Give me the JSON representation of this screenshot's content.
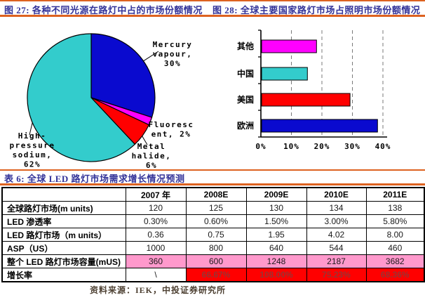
{
  "header": {
    "fig27_title": "图 27: 各种不同光源在路灯中占的市场份额情况",
    "fig28_title": "图 28: 全球主要国家路灯市场占照明市场份额情况"
  },
  "table_section": {
    "title": "表 6: 全球 LED 路灯市场需求增长情况预测",
    "source": "资料来源：IEK，中投证券研究所"
  },
  "colors": {
    "accent_orange": "#DD6220",
    "title_blue": "#333399",
    "pie_blue": "#0A0ACF",
    "magenta": "#FF00FF",
    "red": "#FF0000",
    "cyan": "#33CCCC",
    "pink_row_bg": "#FF99CC",
    "growth_row_bg": "#FF0000",
    "growth_text": "#993333"
  },
  "chart_data": [
    {
      "type": "pie",
      "title": "各种不同光源在路灯中占的市场份额情况",
      "start_angle_deg": 0,
      "direction": "clockwise",
      "slices": [
        {
          "name": "Mercury vapour",
          "value": 30,
          "color": "#0A0ACF",
          "label_lines": [
            "Mercury",
            "vapour,",
            "30%"
          ]
        },
        {
          "name": "Fluorescent",
          "value": 2,
          "color": "#FF00FF",
          "label_lines": [
            "Fluoresc",
            "ent, 2%"
          ]
        },
        {
          "name": "Metal halide",
          "value": 6,
          "color": "#FF0000",
          "label_lines": [
            "Metal",
            "halide,",
            "6%"
          ]
        },
        {
          "name": "High-pressure sodium",
          "value": 62,
          "color": "#33CCCC",
          "label_lines": [
            "High-",
            "pressure",
            "sodium,",
            "62%"
          ]
        }
      ]
    },
    {
      "type": "bar",
      "orientation": "horizontal",
      "title": "全球主要国家路灯市场占照明市场份额情况",
      "categories": [
        "其他",
        "中国",
        "美国",
        "欧洲"
      ],
      "values": [
        18,
        15,
        29,
        38
      ],
      "unit": "%",
      "bar_colors": [
        "#FF00FF",
        "#33CCCC",
        "#FF0000",
        "#0A0ACF"
      ],
      "x_ticks": [
        0,
        10,
        20,
        30,
        40
      ],
      "x_tick_labels": [
        "0%",
        "10%",
        "20%",
        "30%",
        "40%"
      ],
      "xlim": [
        0,
        41
      ],
      "gridlines": "dashed",
      "legend": "none"
    }
  ],
  "table": {
    "columns": [
      "",
      "2007 年",
      "2008E",
      "2009E",
      "2010E",
      "2011E"
    ],
    "rows": [
      {
        "label": "全球路灯市场(m units)",
        "values": [
          "120",
          "125",
          "130",
          "134",
          "138"
        ],
        "value_styles": [
          "plain",
          "plain",
          "plain",
          "plain",
          "plain"
        ]
      },
      {
        "label": "LED 渗透率",
        "values": [
          "0.30%",
          "0.60%",
          "1.50%",
          "3.00%",
          "5.80%"
        ],
        "value_styles": [
          "plain",
          "plain",
          "plain",
          "plain",
          "plain"
        ]
      },
      {
        "label": "LED 路灯市场（m units）",
        "values": [
          "0.36",
          "0.75",
          "1.95",
          "4.02",
          "8.00"
        ],
        "value_styles": [
          "plain",
          "plain",
          "plain",
          "plain",
          "plain"
        ]
      },
      {
        "label": "ASP（US）",
        "values": [
          "1000",
          "800",
          "640",
          "544",
          "460"
        ],
        "value_styles": [
          "plain",
          "plain",
          "plain",
          "plain",
          "plain"
        ]
      },
      {
        "label": "整个 LED 路灯市场容量(mUS)",
        "values": [
          "360",
          "600",
          "1248",
          "2187",
          "3682"
        ],
        "value_styles": [
          "pink",
          "pink",
          "pink",
          "pink",
          "pink"
        ]
      },
      {
        "label": "增长率",
        "values": [
          "\\",
          "66.67%",
          "108.00%",
          "75.23%",
          "68.36%"
        ],
        "value_styles": [
          "plain",
          "red",
          "red",
          "red",
          "red"
        ]
      }
    ]
  }
}
